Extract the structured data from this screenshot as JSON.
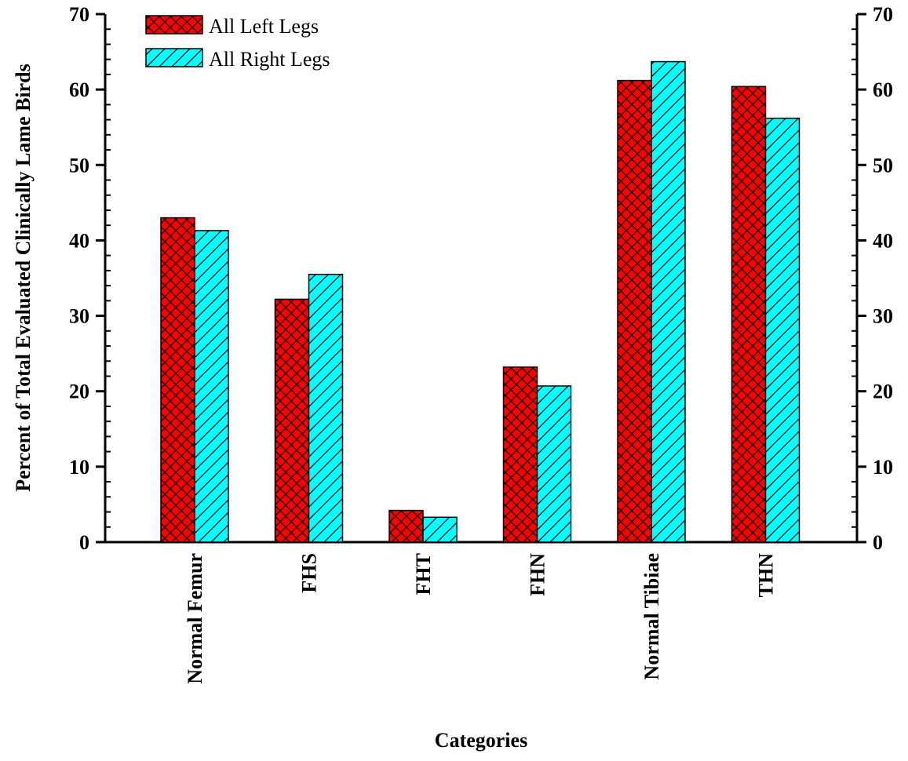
{
  "chart_data": {
    "type": "bar",
    "title": "",
    "xlabel": "Categories",
    "ylabel": "Percent of Total Evaluated  Clinically  Lame Birds",
    "ylim": [
      0,
      70
    ],
    "yticks": [
      0,
      10,
      20,
      30,
      40,
      50,
      60,
      70
    ],
    "secondary_yaxis": true,
    "grid": false,
    "legend_position": "top-left",
    "categories": [
      "Normal Femur",
      "FHS",
      "FHT",
      "FHN",
      "Normal Tibiae",
      "THN"
    ],
    "series": [
      {
        "name": "All Left Legs",
        "values": [
          43.0,
          32.2,
          4.2,
          23.2,
          61.2,
          60.4
        ],
        "color": "#ff0000",
        "pattern": "crosshatch"
      },
      {
        "name": "All Right Legs",
        "values": [
          41.3,
          35.5,
          3.3,
          20.7,
          63.7,
          56.2
        ],
        "color": "#00ffff",
        "pattern": "diagonal"
      }
    ]
  }
}
